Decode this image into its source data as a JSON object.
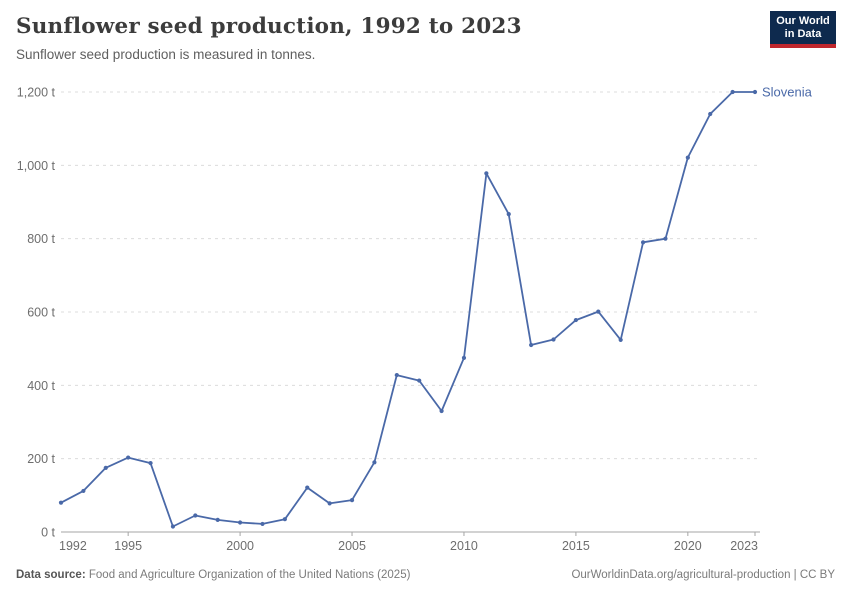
{
  "header": {
    "title": "Sunflower seed production, 1992 to 2023",
    "subtitle": "Sunflower seed production is measured in tonnes.",
    "logo": {
      "line1": "Our World",
      "line2": "in Data"
    }
  },
  "footer": {
    "source_label": "Data source:",
    "source_text": "Food and Agriculture Organization of the United Nations (2025)",
    "credit": "OurWorldinData.org/agricultural-production | CC BY"
  },
  "colors": {
    "line": "#4a69a8",
    "series_label_text": "#4a69a8",
    "logo_bg": "#0e2a4e",
    "logo_stripe": "#c0272d",
    "grid": "#dcdcdc",
    "axis": "#a5a5a5",
    "tick_text": "#6e6e6e",
    "title_text": "#3c3c3c",
    "subtitle_text": "#5f5f5f",
    "footer_text": "#7b7b7b",
    "footer_strong": "#565656"
  },
  "chart_data": {
    "type": "line",
    "title": "Sunflower seed production, 1992 to 2023",
    "subtitle": "Sunflower seed production is measured in tonnes.",
    "xlabel": "",
    "ylabel": "",
    "unit": "t",
    "grid": "dashed horizontal",
    "legend_position": "end-of-line label",
    "xlim": [
      1992,
      2023
    ],
    "ylim": [
      0,
      1200
    ],
    "x": [
      1992,
      1993,
      1994,
      1995,
      1996,
      1997,
      1998,
      1999,
      2000,
      2001,
      2002,
      2003,
      2004,
      2005,
      2006,
      2007,
      2008,
      2009,
      2010,
      2011,
      2012,
      2013,
      2014,
      2015,
      2016,
      2017,
      2018,
      2019,
      2020,
      2021,
      2022,
      2023
    ],
    "series": [
      {
        "name": "Slovenia",
        "values": [
          80,
          112,
          175,
          203,
          188,
          15,
          45,
          33,
          26,
          22,
          35,
          121,
          78,
          87,
          190,
          428,
          413,
          330,
          475,
          978,
          867,
          510,
          525,
          578,
          601,
          524,
          790,
          800,
          1021,
          1140,
          1200,
          1200
        ]
      }
    ],
    "yticks": [
      {
        "v": 0,
        "label": "0 t"
      },
      {
        "v": 200,
        "label": "200 t"
      },
      {
        "v": 400,
        "label": "400 t"
      },
      {
        "v": 600,
        "label": "600 t"
      },
      {
        "v": 800,
        "label": "800 t"
      },
      {
        "v": 1000,
        "label": "1,000 t"
      },
      {
        "v": 1200,
        "label": "1,200 t"
      }
    ],
    "xticks": [
      1992,
      1995,
      2000,
      2005,
      2010,
      2015,
      2020,
      2023
    ]
  }
}
